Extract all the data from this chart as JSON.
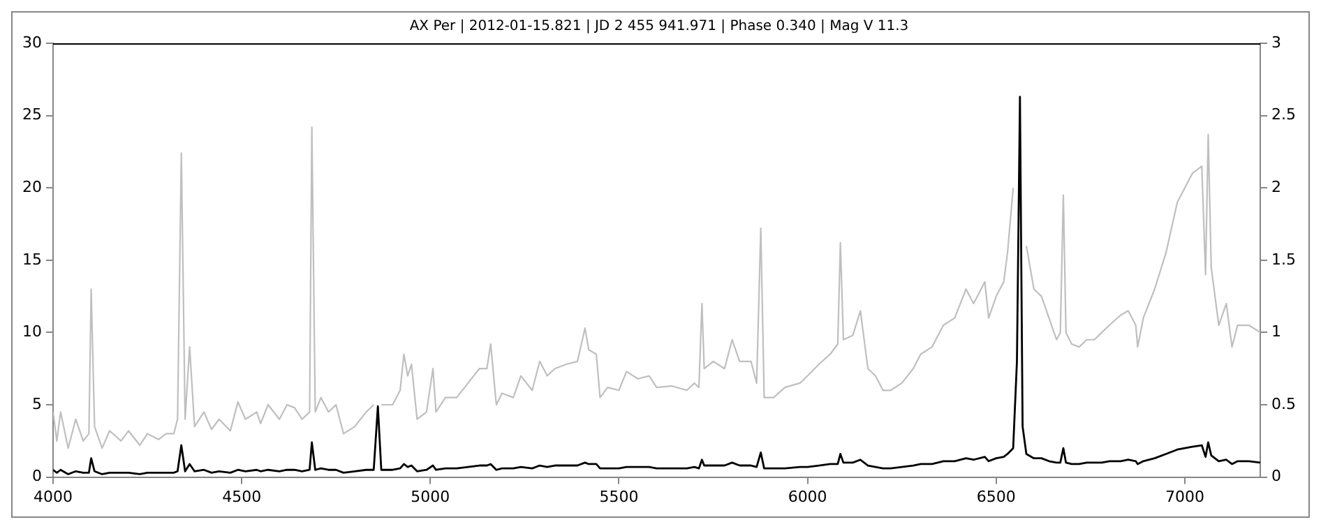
{
  "chart_data": {
    "type": "line",
    "title": "AX Per | 2012-01-15.821 | JD 2 455 941.971 | Phase 0.340 | Mag V 11.3",
    "x": [
      4000,
      4010,
      4020,
      4040,
      4060,
      4080,
      4095,
      4101,
      4110,
      4130,
      4150,
      4180,
      4200,
      4230,
      4250,
      4280,
      4300,
      4320,
      4330,
      4340,
      4350,
      4362,
      4375,
      4400,
      4420,
      4440,
      4470,
      4490,
      4510,
      4540,
      4550,
      4570,
      4600,
      4620,
      4640,
      4660,
      4680,
      4686,
      4695,
      4710,
      4730,
      4750,
      4770,
      4800,
      4830,
      4850,
      4861,
      4870,
      4900,
      4920,
      4930,
      4940,
      4950,
      4965,
      4990,
      5007,
      5015,
      5040,
      5070,
      5100,
      5130,
      5150,
      5160,
      5175,
      5190,
      5220,
      5240,
      5270,
      5290,
      5310,
      5330,
      5360,
      5390,
      5410,
      5420,
      5440,
      5450,
      5470,
      5500,
      5520,
      5550,
      5580,
      5600,
      5640,
      5680,
      5700,
      5712,
      5720,
      5726,
      5750,
      5780,
      5800,
      5820,
      5850,
      5865,
      5876,
      5885,
      5910,
      5940,
      5980,
      6000,
      6030,
      6060,
      6080,
      6087,
      6095,
      6120,
      6140,
      6160,
      6180,
      6200,
      6220,
      6250,
      6280,
      6300,
      6330,
      6360,
      6390,
      6420,
      6440,
      6470,
      6480,
      6500,
      6520,
      6530,
      6545,
      6555,
      6563,
      6570,
      6580,
      6600,
      6620,
      6640,
      6660,
      6670,
      6678,
      6685,
      6700,
      6720,
      6740,
      6760,
      6780,
      6800,
      6830,
      6850,
      6870,
      6875,
      6890,
      6920,
      6950,
      6980,
      7000,
      7020,
      7045,
      7055,
      7062,
      7070,
      7090,
      7110,
      7125,
      7140,
      7170,
      7200
    ],
    "series": [
      {
        "color": "#bfbfbf",
        "axis": "y2",
        "values": [
          0.45,
          0.25,
          0.45,
          0.2,
          0.4,
          0.25,
          0.3,
          1.3,
          0.35,
          0.2,
          0.32,
          0.25,
          0.32,
          0.22,
          0.3,
          0.26,
          0.3,
          0.3,
          0.4,
          2.24,
          0.4,
          0.9,
          0.35,
          0.45,
          0.33,
          0.4,
          0.32,
          0.52,
          0.4,
          0.45,
          0.37,
          0.5,
          0.4,
          0.5,
          0.48,
          0.4,
          0.45,
          2.42,
          0.45,
          0.55,
          0.45,
          0.5,
          0.3,
          0.35,
          0.45,
          0.5,
          null,
          0.5,
          0.5,
          0.6,
          0.85,
          0.7,
          0.78,
          0.4,
          0.45,
          0.75,
          0.45,
          0.55,
          0.55,
          0.65,
          0.75,
          0.75,
          0.92,
          0.5,
          0.58,
          0.55,
          0.7,
          0.6,
          0.8,
          0.7,
          0.75,
          0.78,
          0.8,
          1.03,
          0.88,
          0.85,
          0.55,
          0.62,
          0.6,
          0.73,
          0.68,
          0.7,
          0.62,
          0.63,
          0.6,
          0.65,
          0.62,
          1.2,
          0.75,
          0.8,
          0.75,
          0.95,
          0.8,
          0.8,
          0.65,
          1.72,
          0.55,
          0.55,
          0.62,
          0.65,
          0.7,
          0.78,
          0.85,
          0.92,
          1.62,
          0.95,
          0.98,
          1.15,
          0.75,
          0.7,
          0.6,
          0.6,
          0.65,
          0.75,
          0.85,
          0.9,
          1.05,
          1.1,
          1.3,
          1.2,
          1.35,
          1.1,
          1.25,
          1.35,
          1.55,
          2.0,
          null,
          null,
          null,
          1.6,
          1.3,
          1.25,
          1.1,
          0.95,
          1.0,
          1.95,
          1.0,
          0.92,
          0.9,
          0.95,
          0.95,
          1.0,
          1.05,
          1.12,
          1.15,
          1.05,
          0.9,
          1.1,
          1.3,
          1.55,
          1.9,
          2.0,
          2.1,
          2.15,
          1.4,
          2.37,
          1.45,
          1.05,
          1.2,
          0.9,
          1.05,
          1.05,
          1.0
        ]
      },
      {
        "color": "#000000",
        "axis": "y",
        "values": [
          0.5,
          0.3,
          0.5,
          0.2,
          0.4,
          0.3,
          0.3,
          1.3,
          0.4,
          0.2,
          0.3,
          0.3,
          0.3,
          0.2,
          0.3,
          0.3,
          0.3,
          0.3,
          0.4,
          2.2,
          0.4,
          0.9,
          0.4,
          0.5,
          0.3,
          0.4,
          0.3,
          0.5,
          0.4,
          0.5,
          0.4,
          0.5,
          0.4,
          0.5,
          0.5,
          0.4,
          0.5,
          2.4,
          0.5,
          0.6,
          0.5,
          0.5,
          0.3,
          0.4,
          0.5,
          0.5,
          4.9,
          0.5,
          0.5,
          0.6,
          0.9,
          0.7,
          0.8,
          0.4,
          0.5,
          0.8,
          0.5,
          0.6,
          0.6,
          0.7,
          0.8,
          0.8,
          0.9,
          0.5,
          0.6,
          0.6,
          0.7,
          0.6,
          0.8,
          0.7,
          0.8,
          0.8,
          0.8,
          1.0,
          0.9,
          0.9,
          0.6,
          0.6,
          0.6,
          0.7,
          0.7,
          0.7,
          0.6,
          0.6,
          0.6,
          0.7,
          0.6,
          1.2,
          0.8,
          0.8,
          0.8,
          1.0,
          0.8,
          0.8,
          0.7,
          1.7,
          0.6,
          0.6,
          0.6,
          0.7,
          0.7,
          0.8,
          0.9,
          0.9,
          1.6,
          1.0,
          1.0,
          1.2,
          0.8,
          0.7,
          0.6,
          0.6,
          0.7,
          0.8,
          0.9,
          0.9,
          1.1,
          1.1,
          1.3,
          1.2,
          1.4,
          1.1,
          1.3,
          1.4,
          1.6,
          2.0,
          8,
          26.3,
          3.5,
          1.6,
          1.3,
          1.3,
          1.1,
          1.0,
          1.0,
          2.0,
          1.0,
          0.9,
          0.9,
          1.0,
          1.0,
          1.0,
          1.1,
          1.1,
          1.2,
          1.1,
          0.9,
          1.1,
          1.3,
          1.6,
          1.9,
          2.0,
          2.1,
          2.2,
          1.4,
          2.4,
          1.5,
          1.1,
          1.2,
          0.9,
          1.1,
          1.1,
          1.0
        ]
      }
    ],
    "xlim": [
      4000,
      7200
    ],
    "xticks": [
      4000,
      4500,
      5000,
      5500,
      6000,
      6500,
      7000
    ],
    "ylim": [
      0,
      30
    ],
    "yticks": [
      0,
      5,
      10,
      15,
      20,
      25,
      30
    ],
    "y2lim": [
      0,
      3
    ],
    "y2ticks": [
      0,
      0.5,
      1,
      1.5,
      2,
      2.5,
      3
    ],
    "grid": false,
    "legend": false,
    "marker": "none",
    "line_style": "solid"
  }
}
